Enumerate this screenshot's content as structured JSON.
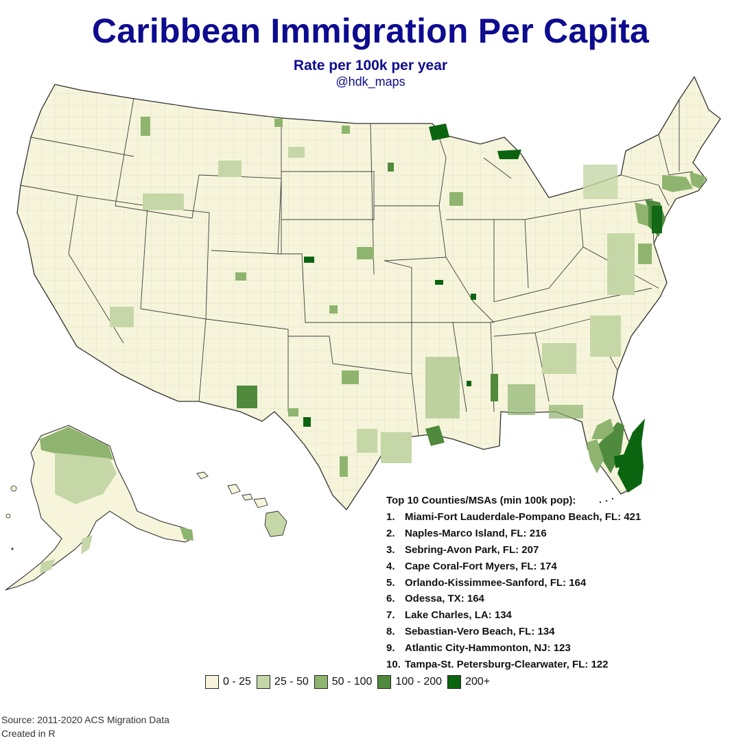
{
  "header": {
    "title": "Caribbean Immigration Per Capita",
    "subtitle": "Rate per 100k per year",
    "handle": "@hdk_maps"
  },
  "colors": {
    "background": "#ffffff",
    "title": "#0d0b8f",
    "land": "#f6f5dc",
    "state_border": "#3a3a3a",
    "county_border": "#c9c7a6"
  },
  "legend": {
    "bins": [
      {
        "label": "0 - 25",
        "color": "#f6f5dc"
      },
      {
        "label": "25 - 50",
        "color": "#c5d7a6"
      },
      {
        "label": "50 - 100",
        "color": "#8fb46f"
      },
      {
        "label": "100 - 200",
        "color": "#4f8a3d"
      },
      {
        "label": "200+",
        "color": "#0b6410"
      }
    ]
  },
  "top_list": {
    "heading": "Top 10 Counties/MSAs (min 100k pop):",
    "items": [
      {
        "rank": "1.",
        "text": "Miami-Fort Lauderdale-Pompano Beach, FL: 421"
      },
      {
        "rank": "2.",
        "text": "Naples-Marco Island, FL: 216"
      },
      {
        "rank": "3.",
        "text": "Sebring-Avon Park, FL: 207"
      },
      {
        "rank": "4.",
        "text": "Cape Coral-Fort Myers, FL: 174"
      },
      {
        "rank": "5.",
        "text": "Orlando-Kissimmee-Sanford, FL: 164"
      },
      {
        "rank": "6.",
        "text": "Odessa, TX: 164"
      },
      {
        "rank": "7.",
        "text": "Lake Charles, LA: 134"
      },
      {
        "rank": "8.",
        "text": "Sebastian-Vero Beach, FL: 134"
      },
      {
        "rank": "9.",
        "text": "Atlantic City-Hammonton, NJ: 123"
      },
      {
        "rank": "10.",
        "text": "Tampa-St. Petersburg-Clearwater, FL: 122"
      }
    ]
  },
  "footer": {
    "source": "Source: 2011-2020 ACS Migration Data",
    "credit": "Created in R"
  }
}
